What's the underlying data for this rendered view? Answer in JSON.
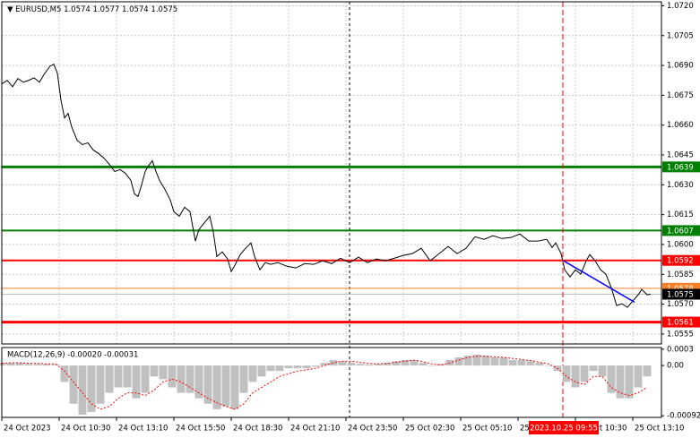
{
  "chart_data": [
    {
      "type": "line",
      "symbol": "EURUSD,M5",
      "ohlc": [
        1.0574,
        1.0577,
        1.0574,
        1.0575
      ],
      "x": [
        0,
        3,
        6,
        9,
        12,
        15,
        18,
        21,
        24,
        27,
        29,
        31,
        33,
        35,
        37,
        39,
        42,
        45,
        48,
        51,
        54,
        57,
        60,
        63,
        66,
        69,
        72,
        74,
        76,
        78,
        80,
        82,
        84,
        86,
        88,
        91,
        94,
        96,
        99,
        102,
        105,
        108,
        110,
        112,
        114,
        116,
        118,
        120,
        123,
        126,
        128,
        130,
        133,
        136,
        139,
        141,
        144,
        147,
        150,
        154,
        159,
        164,
        169,
        174,
        179,
        184,
        189,
        194,
        199,
        204,
        209,
        214,
        219,
        224,
        229,
        234,
        239,
        244,
        249,
        254,
        259,
        264,
        269,
        274,
        279,
        284,
        289,
        294,
        299,
        304,
        307,
        309,
        312,
        314,
        317,
        320,
        323,
        326,
        328,
        331,
        334,
        337,
        340,
        343,
        346,
        349,
        352,
        355,
        357,
        360,
        362
      ],
      "series": [
        {
          "color": "#000000",
          "values": [
            1.06807,
            1.06825,
            1.06793,
            1.06834,
            1.06816,
            1.06825,
            1.06838,
            1.06816,
            1.06861,
            1.06897,
            1.06906,
            1.06861,
            1.06726,
            1.06636,
            1.06659,
            1.06591,
            1.06524,
            1.06502,
            1.06511,
            1.06475,
            1.06457,
            1.06434,
            1.06403,
            1.06367,
            1.06376,
            1.06358,
            1.06322,
            1.06255,
            1.06241,
            1.063,
            1.06367,
            1.06398,
            1.06421,
            1.06367,
            1.06322,
            1.06277,
            1.06223,
            1.06165,
            1.06142,
            1.06187,
            1.06165,
            1.06017,
            1.06075,
            1.06098,
            1.0612,
            1.06142,
            1.06062,
            1.0594,
            1.05963,
            1.05927,
            1.05864,
            1.05895,
            1.05949,
            1.05981,
            1.06008,
            1.0594,
            1.05873,
            1.05909,
            1.059,
            1.05909,
            1.05891,
            1.05882,
            1.05904,
            1.059,
            1.05918,
            1.05904,
            1.05931,
            1.05909,
            1.05936,
            1.05909,
            1.05927,
            1.05918,
            1.05931,
            1.05945,
            1.05954,
            1.05981,
            1.05918,
            1.05954,
            1.0599,
            1.05954,
            1.05981,
            1.06039,
            1.06026,
            1.06044,
            1.0603,
            1.06035,
            1.06053,
            1.06017,
            1.06017,
            1.06026,
            1.05985,
            1.06008,
            1.05954,
            1.05873,
            1.05837,
            1.05873,
            1.05851,
            1.05918,
            1.05949,
            1.05918,
            1.05873,
            1.05851,
            1.05783,
            1.05693,
            1.05702,
            1.05684,
            1.05716,
            1.05747,
            1.05774,
            1.05747,
            1.0575
          ]
        }
      ],
      "xlim": [
        0,
        368
      ],
      "ylim": [
        1.055,
        1.0722
      ],
      "yticks": [
        {
          "value": 1.072,
          "label": "1.0720"
        },
        {
          "value": 1.0705,
          "label": "1.0705"
        },
        {
          "value": 1.069,
          "label": "1.0690"
        },
        1.0675,
        {
          "value": 1.066,
          "label": "1.0660"
        },
        1.0645,
        {
          "value": 1.063,
          "label": "1.0630"
        },
        1.0615,
        {
          "value": 1.06,
          "label": "1.0600"
        },
        1.0585,
        {
          "value": 1.057,
          "label": "1.0570"
        },
        1.0555
      ],
      "xticks": [
        {
          "value": 0,
          "label": "24 Oct 2023"
        },
        {
          "value": 32,
          "label": "24 Oct 10:30"
        },
        {
          "value": 64,
          "label": "24 Oct 13:10"
        },
        {
          "value": 96,
          "label": "24 Oct 15:50"
        },
        {
          "value": 128,
          "label": "24 Oct 18:30"
        },
        {
          "value": 160,
          "label": "24 Oct 21:10"
        },
        {
          "value": 192,
          "label": "24 Oct 23:50"
        },
        {
          "value": 224,
          "label": "25 Oct 02:30"
        },
        {
          "value": 256,
          "label": "25 Oct 05:10"
        },
        {
          "value": 288,
          "label": "25 Oct 07:50"
        },
        {
          "value": 320,
          "label": "25 Oct 10:30"
        },
        {
          "value": 352,
          "label": "25 Oct 13:10"
        }
      ],
      "levels": [
        {
          "value": 1.0639,
          "color": "#008000"
        },
        {
          "value": 1.0607,
          "color": "#008000"
        },
        {
          "value": 1.0592,
          "color": "#ff0000"
        },
        {
          "value": 1.0578,
          "color": "#ff7f27"
        },
        {
          "value": 1.0575,
          "color": "#000000"
        },
        {
          "value": 1.0561,
          "color": "#ff0000"
        }
      ],
      "trendline": {
        "color": "#0000ff",
        "x": [
          313,
          353
        ],
        "values": [
          1.0592,
          1.0571
        ]
      },
      "separator": 194,
      "crosshair": {
        "value": 313,
        "label": "2023.10.25 09:55",
        "color": "#ff0000"
      },
      "grid": true
    },
    {
      "type": "macd",
      "title": "MACD(12,26,9) -0.00020 -0.00031",
      "x": [
        0,
        5,
        10,
        15,
        20,
        25,
        30,
        35,
        40,
        45,
        50,
        55,
        60,
        65,
        70,
        75,
        80,
        85,
        90,
        95,
        100,
        105,
        110,
        115,
        120,
        125,
        130,
        135,
        140,
        145,
        150,
        155,
        160,
        165,
        170,
        175,
        180,
        185,
        190,
        195,
        200,
        205,
        210,
        215,
        220,
        225,
        230,
        235,
        240,
        245,
        250,
        255,
        260,
        265,
        270,
        275,
        280,
        285,
        290,
        295,
        300,
        305,
        310,
        315,
        320,
        325,
        330,
        335,
        340,
        345,
        350,
        355,
        360
      ],
      "series": [
        {
          "color": "#c0c0c0",
          "values": [
            5e-05,
            5e-05,
            5e-05,
            3e-05,
            3e-05,
            3e-05,
            2e-05,
            -0.0003,
            -0.0007,
            -0.0009,
            -0.00085,
            -0.0007,
            -0.0005,
            -0.0004,
            -0.0004,
            -0.0006,
            -0.0005,
            -0.0002,
            -0.00025,
            -0.0004,
            -0.0005,
            -0.0005,
            -0.0006,
            -0.0007,
            -0.0008,
            -0.00075,
            -0.0008,
            -0.0005,
            -0.0003,
            -0.0002,
            -0.0001,
            -0.0001,
            -5e-05,
            -5e-05,
            -5e-05,
            -2e-05,
            5e-05,
            0.0001,
            8e-05,
            5e-05,
            3e-05,
            2e-05,
            3e-05,
            5e-05,
            8e-05,
            0.0001,
            0.0001,
            5e-05,
            0,
            3e-05,
            0.0001,
            0.00015,
            0.00018,
            0.0002,
            0.00018,
            0.00015,
            0.00015,
            0.0001,
            0.0001,
            8e-05,
            5e-05,
            0,
            -0.0001,
            -0.0003,
            -0.0004,
            -0.0003,
            -0.0001,
            -0.0002,
            -0.0005,
            -0.0006,
            -0.0006,
            -0.0004,
            -0.0002
          ]
        },
        {
          "color": "#ff0000",
          "values": [
            4e-05,
            5e-05,
            5e-05,
            4e-05,
            4e-05,
            3e-05,
            3e-05,
            -0.0001,
            -0.0003,
            -0.0005,
            -0.0007,
            -0.0008,
            -0.00075,
            -0.0006,
            -0.0005,
            -0.0005,
            -0.00055,
            -0.00045,
            -0.0003,
            -0.00025,
            -0.0003,
            -0.0004,
            -0.0005,
            -0.0006,
            -0.00068,
            -0.00075,
            -0.0008,
            -0.0007,
            -0.0005,
            -0.0004,
            -0.0003,
            -0.0002,
            -0.00015,
            -0.0001,
            -8e-05,
            -5e-05,
            0,
            5e-05,
            8e-05,
            8e-05,
            6e-05,
            4e-05,
            3e-05,
            4e-05,
            6e-05,
            8e-05,
            0.0001,
            7e-05,
            3e-05,
            1e-05,
            5e-05,
            0.0001,
            0.00015,
            0.00017,
            0.00017,
            0.00016,
            0.00015,
            0.00013,
            0.00011,
            9e-05,
            6e-05,
            3e-05,
            -5e-05,
            -0.0002,
            -0.0003,
            -0.00035,
            -0.0002,
            -0.0002,
            -0.0004,
            -0.0005,
            -0.00055,
            -0.0005,
            -0.0004
          ]
        }
      ],
      "xlim": [
        0,
        368
      ],
      "ylim": [
        -0.00095,
        0.00033
      ],
      "yticks": [
        0.0003,
        {
          "value": 0,
          "label": "0.00"
        },
        -0.00092
      ]
    }
  ]
}
